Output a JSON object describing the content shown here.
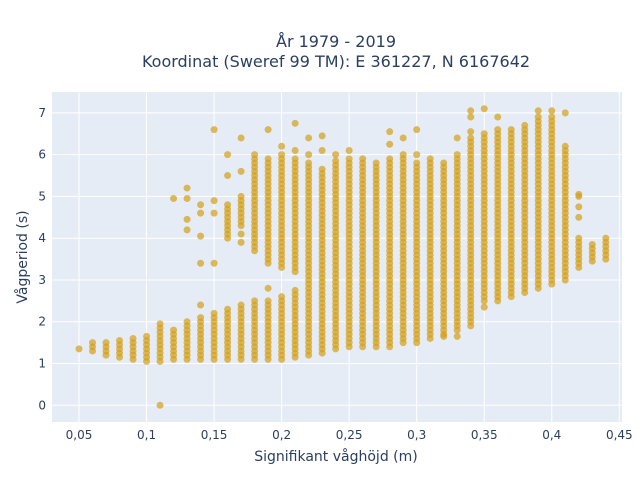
{
  "chart_data": {
    "type": "scatter",
    "title_line1": "År 1979 - 2019",
    "title_line2": "Koordinat (Sweref 99 TM): E 361227, N 6167642",
    "xlabel": "Signifikant våghöjd (m)",
    "ylabel": "Vågperiod (s)",
    "xlim": [
      0.03,
      0.452
    ],
    "ylim": [
      -0.4,
      7.5
    ],
    "x_ticks": [
      0.05,
      0.1,
      0.15,
      0.2,
      0.25,
      0.3,
      0.35,
      0.4,
      0.45
    ],
    "x_tick_labels": [
      "0,05",
      "0,1",
      "0,15",
      "0,2",
      "0,25",
      "0,3",
      "0,35",
      "0,4",
      "0,45"
    ],
    "y_ticks": [
      0,
      1,
      2,
      3,
      4,
      5,
      6,
      7
    ],
    "y_tick_labels": [
      "0",
      "1",
      "2",
      "3",
      "4",
      "5",
      "6",
      "7"
    ],
    "grid": true,
    "legend": "none",
    "colors": {
      "marker": "#D4A017",
      "plot_bg": "#E5ECF6",
      "grid": "#ffffff",
      "text": "#2a3f5f"
    },
    "series": [
      {
        "marker_opacity": 0.7,
        "columns": [
          {
            "x": 0.05,
            "ranges": [
              [
                1.35,
                1.4
              ]
            ],
            "outliers": []
          },
          {
            "x": 0.06,
            "ranges": [
              [
                1.3,
                1.5
              ]
            ],
            "outliers": []
          },
          {
            "x": 0.07,
            "ranges": [
              [
                1.3,
                1.5
              ]
            ],
            "outliers": [
              1.2
            ]
          },
          {
            "x": 0.08,
            "ranges": [
              [
                1.15,
                1.6
              ]
            ],
            "outliers": []
          },
          {
            "x": 0.09,
            "ranges": [
              [
                1.1,
                1.6
              ]
            ],
            "outliers": []
          },
          {
            "x": 0.1,
            "ranges": [
              [
                1.05,
                1.7
              ]
            ],
            "outliers": []
          },
          {
            "x": 0.11,
            "ranges": [
              [
                1.05,
                1.95
              ]
            ],
            "outliers": [
              0.0
            ]
          },
          {
            "x": 0.12,
            "ranges": [
              [
                1.1,
                1.85
              ]
            ],
            "outliers": [
              4.95
            ]
          },
          {
            "x": 0.13,
            "ranges": [
              [
                1.1,
                2.0
              ]
            ],
            "outliers": [
              4.2,
              4.45,
              4.95,
              5.2
            ]
          },
          {
            "x": 0.14,
            "ranges": [
              [
                1.1,
                2.15
              ]
            ],
            "outliers": [
              2.4,
              3.4,
              4.05,
              4.6,
              4.8
            ]
          },
          {
            "x": 0.15,
            "ranges": [
              [
                1.1,
                2.2
              ]
            ],
            "outliers": [
              3.4,
              4.6,
              4.9,
              6.6
            ]
          },
          {
            "x": 0.16,
            "ranges": [
              [
                1.1,
                2.3
              ],
              [
                4.0,
                4.85
              ]
            ],
            "outliers": [
              5.5,
              6.0
            ]
          },
          {
            "x": 0.17,
            "ranges": [
              [
                1.1,
                2.4
              ],
              [
                4.3,
                5.0
              ]
            ],
            "outliers": [
              3.9,
              4.1,
              5.6,
              6.4
            ]
          },
          {
            "x": 0.18,
            "ranges": [
              [
                1.1,
                2.55
              ],
              [
                3.7,
                5.9
              ]
            ],
            "outliers": [
              6.0
            ]
          },
          {
            "x": 0.19,
            "ranges": [
              [
                1.1,
                2.5
              ],
              [
                3.4,
                5.9
              ]
            ],
            "outliers": [
              2.8,
              6.6
            ]
          },
          {
            "x": 0.2,
            "ranges": [
              [
                1.1,
                2.6
              ],
              [
                3.3,
                6.0
              ]
            ],
            "outliers": [
              6.2
            ]
          },
          {
            "x": 0.21,
            "ranges": [
              [
                1.15,
                2.8
              ],
              [
                3.2,
                5.9
              ]
            ],
            "outliers": [
              6.1,
              6.75
            ]
          },
          {
            "x": 0.22,
            "ranges": [
              [
                1.2,
                5.8
              ]
            ],
            "outliers": [
              6.0,
              6.4
            ]
          },
          {
            "x": 0.23,
            "ranges": [
              [
                1.25,
                5.7
              ]
            ],
            "outliers": [
              6.1,
              6.45
            ]
          },
          {
            "x": 0.24,
            "ranges": [
              [
                1.35,
                5.9
              ]
            ],
            "outliers": [
              6.0
            ]
          },
          {
            "x": 0.25,
            "ranges": [
              [
                1.4,
                5.9
              ]
            ],
            "outliers": [
              6.1
            ]
          },
          {
            "x": 0.26,
            "ranges": [
              [
                1.4,
                5.8
              ]
            ],
            "outliers": [
              5.9
            ]
          },
          {
            "x": 0.27,
            "ranges": [
              [
                1.4,
                5.8
              ]
            ],
            "outliers": []
          },
          {
            "x": 0.28,
            "ranges": [
              [
                1.4,
                5.9
              ]
            ],
            "outliers": [
              6.25,
              6.55
            ]
          },
          {
            "x": 0.29,
            "ranges": [
              [
                1.5,
                5.9
              ]
            ],
            "outliers": [
              6.0,
              6.4
            ]
          },
          {
            "x": 0.3,
            "ranges": [
              [
                1.5,
                5.8
              ]
            ],
            "outliers": [
              6.0,
              6.6
            ]
          },
          {
            "x": 0.31,
            "ranges": [
              [
                1.6,
                5.9
              ]
            ],
            "outliers": []
          },
          {
            "x": 0.32,
            "ranges": [
              [
                1.7,
                5.85
              ]
            ],
            "outliers": [
              1.65
            ]
          },
          {
            "x": 0.33,
            "ranges": [
              [
                1.8,
                6.0
              ]
            ],
            "outliers": [
              1.65,
              6.4
            ]
          },
          {
            "x": 0.34,
            "ranges": [
              [
                1.9,
                6.4
              ]
            ],
            "outliers": [
              6.55,
              6.9,
              7.05
            ]
          },
          {
            "x": 0.35,
            "ranges": [
              [
                2.5,
                6.5
              ]
            ],
            "outliers": [
              2.35,
              7.1
            ]
          },
          {
            "x": 0.36,
            "ranges": [
              [
                2.5,
                6.6
              ]
            ],
            "outliers": [
              6.9
            ]
          },
          {
            "x": 0.37,
            "ranges": [
              [
                2.6,
                6.6
              ]
            ],
            "outliers": []
          },
          {
            "x": 0.38,
            "ranges": [
              [
                2.7,
                6.7
              ]
            ],
            "outliers": []
          },
          {
            "x": 0.39,
            "ranges": [
              [
                2.8,
                6.9
              ]
            ],
            "outliers": [
              7.05
            ]
          },
          {
            "x": 0.4,
            "ranges": [
              [
                2.9,
                6.9
              ]
            ],
            "outliers": [
              7.05
            ]
          },
          {
            "x": 0.41,
            "ranges": [
              [
                3.0,
                6.2
              ]
            ],
            "outliers": [
              7.0
            ]
          },
          {
            "x": 0.42,
            "ranges": [
              [
                3.3,
                4.0
              ]
            ],
            "outliers": [
              4.5,
              4.75,
              5.0,
              5.05
            ]
          },
          {
            "x": 0.43,
            "ranges": [
              [
                3.45,
                3.85
              ]
            ],
            "outliers": []
          },
          {
            "x": 0.44,
            "ranges": [
              [
                3.5,
                4.05
              ]
            ],
            "outliers": []
          }
        ]
      }
    ]
  }
}
